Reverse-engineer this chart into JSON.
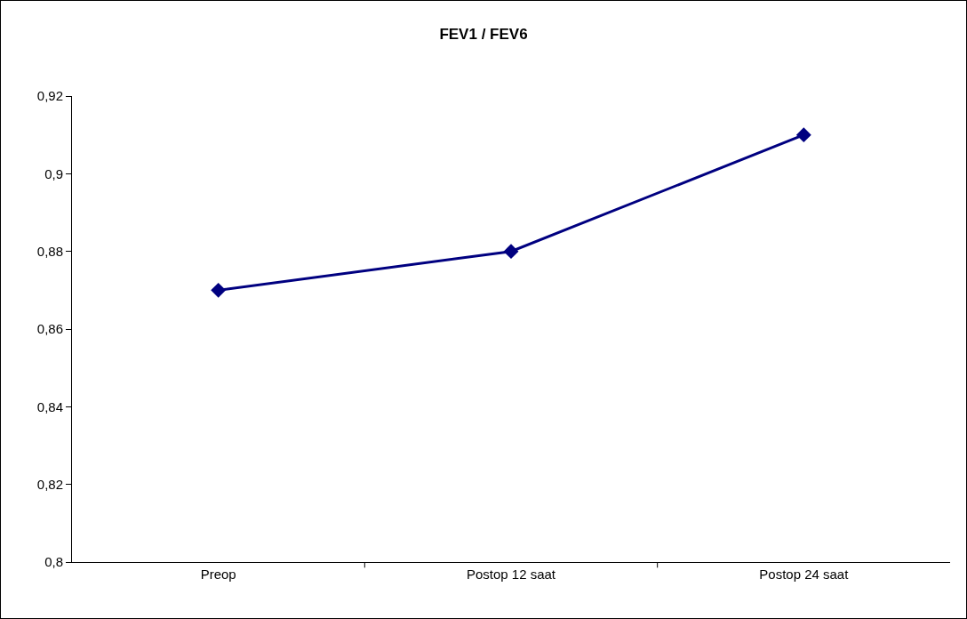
{
  "chart_data": {
    "type": "line",
    "title": "FEV1 / FEV6",
    "categories": [
      "Preop",
      "Postop 12 saat",
      "Postop 24 saat"
    ],
    "series": [
      {
        "color": "#000080",
        "values": [
          0.87,
          0.88,
          0.91
        ]
      }
    ],
    "ylim": [
      0.8,
      0.92
    ],
    "yticks": [
      {
        "value": 0.8,
        "label": "0,8"
      },
      {
        "value": 0.82,
        "label": "0,82"
      },
      {
        "value": 0.84,
        "label": "0,84"
      },
      {
        "value": 0.86,
        "label": "0,86"
      },
      {
        "value": 0.88,
        "label": "0,88"
      },
      {
        "value": 0.9,
        "label": "0,9"
      },
      {
        "value": 0.92,
        "label": "0,92"
      }
    ],
    "marker": "diamond",
    "line_style": "solid"
  }
}
